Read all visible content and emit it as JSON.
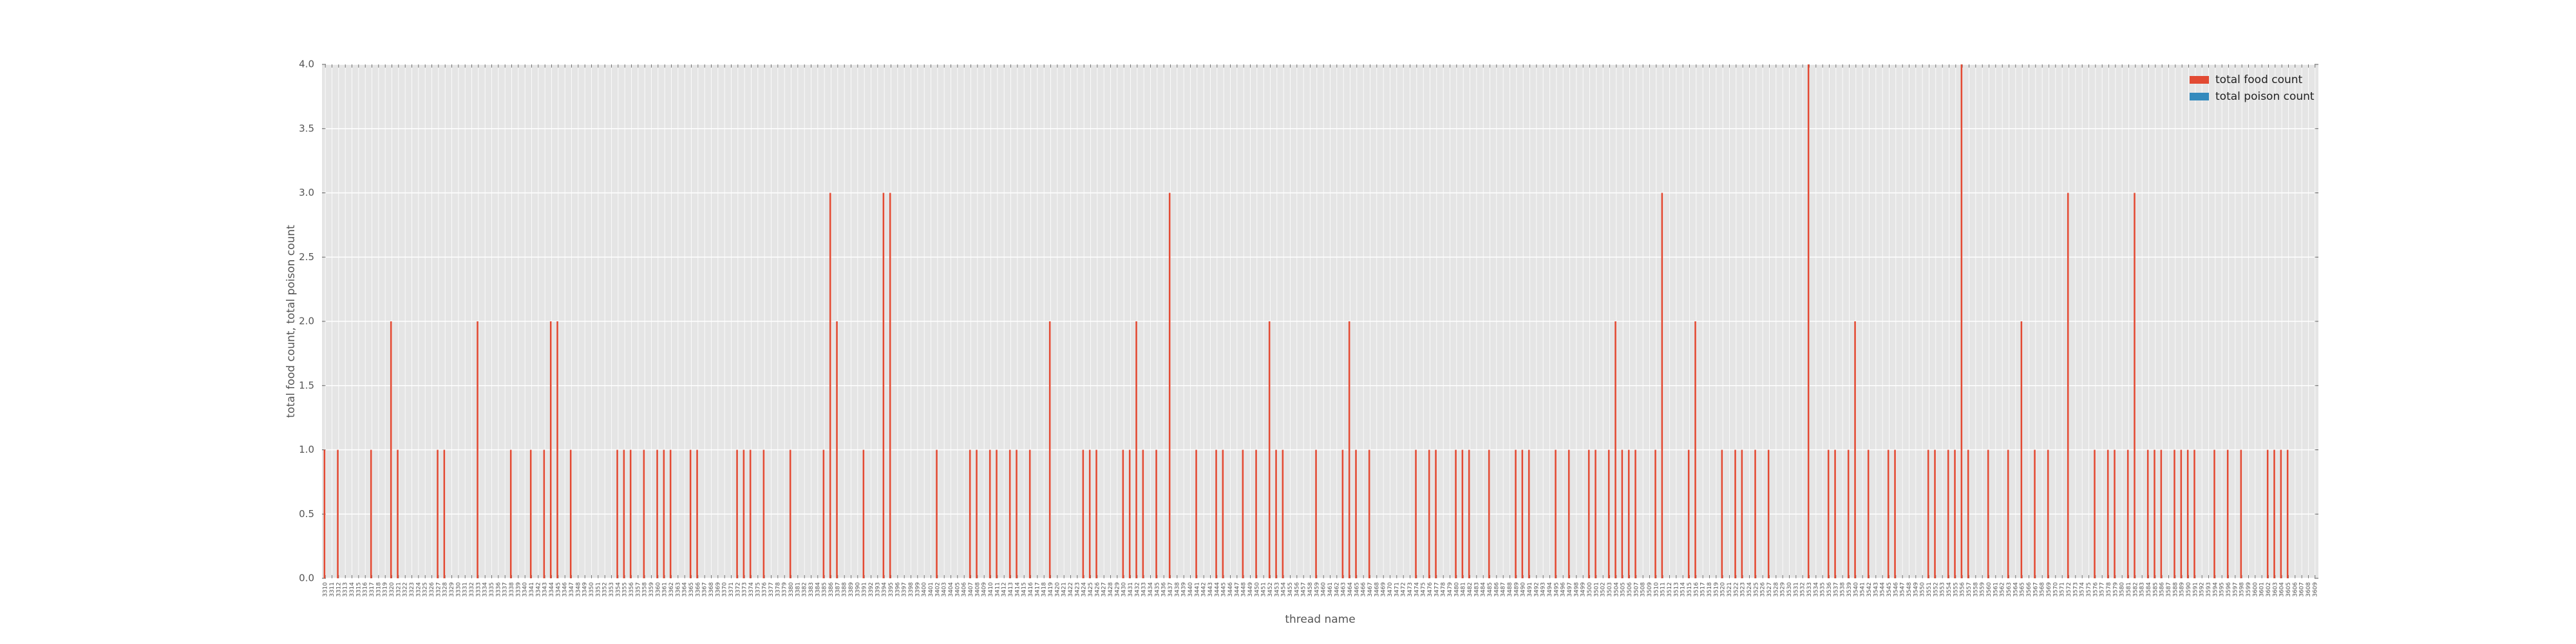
{
  "chart_data": {
    "type": "bar",
    "xlabel": "thread name",
    "ylabel": "total food count, total poison count",
    "categories": [
      "3310",
      "3311",
      "3312",
      "3313",
      "3314",
      "3315",
      "3316",
      "3317",
      "3318",
      "3319",
      "3320",
      "3321",
      "3322",
      "3323",
      "3324",
      "3325",
      "3326",
      "3327",
      "3328",
      "3329",
      "3330",
      "3331",
      "3332",
      "3333",
      "3334",
      "3335",
      "3336",
      "3337",
      "3338",
      "3339",
      "3340",
      "3341",
      "3342",
      "3343",
      "3344",
      "3345",
      "3346",
      "3347",
      "3348",
      "3349",
      "3350",
      "3351",
      "3352",
      "3353",
      "3354",
      "3355",
      "3356",
      "3357",
      "3358",
      "3359",
      "3360",
      "3361",
      "3362",
      "3363",
      "3364",
      "3365",
      "3366",
      "3367",
      "3368",
      "3369",
      "3370",
      "3371",
      "3372",
      "3373",
      "3374",
      "3375",
      "3376",
      "3377",
      "3378",
      "3379",
      "3380",
      "3381",
      "3382",
      "3383",
      "3384",
      "3385",
      "3386",
      "3387",
      "3388",
      "3389",
      "3390",
      "3391",
      "3392",
      "3393",
      "3394",
      "3395",
      "3396",
      "3397",
      "3398",
      "3399",
      "3400",
      "3401",
      "3402",
      "3403",
      "3404",
      "3405",
      "3406",
      "3407",
      "3408",
      "3409",
      "3410",
      "3411",
      "3412",
      "3413",
      "3414",
      "3415",
      "3416",
      "3417",
      "3418",
      "3419",
      "3420",
      "3421",
      "3422",
      "3423",
      "3424",
      "3425",
      "3426",
      "3427",
      "3428",
      "3429",
      "3430",
      "3431",
      "3432",
      "3433",
      "3434",
      "3435",
      "3436",
      "3437",
      "3438",
      "3439",
      "3440",
      "3441",
      "3442",
      "3443",
      "3444",
      "3445",
      "3446",
      "3447",
      "3448",
      "3449",
      "3450",
      "3451",
      "3452",
      "3453",
      "3454",
      "3455",
      "3456",
      "3457",
      "3458",
      "3459",
      "3460",
      "3461",
      "3462",
      "3463",
      "3464",
      "3465",
      "3466",
      "3467",
      "3468",
      "3469",
      "3470",
      "3471",
      "3472",
      "3473",
      "3474",
      "3475",
      "3476",
      "3477",
      "3478",
      "3479",
      "3480",
      "3481",
      "3482",
      "3483",
      "3484",
      "3485",
      "3486",
      "3487",
      "3488",
      "3489",
      "3490",
      "3491",
      "3492",
      "3493",
      "3494",
      "3495",
      "3496",
      "3497",
      "3498",
      "3499",
      "3500",
      "3501",
      "3502",
      "3503",
      "3504",
      "3505",
      "3506",
      "3507",
      "3508",
      "3509",
      "3510",
      "3511",
      "3512",
      "3513",
      "3514",
      "3515",
      "3516",
      "3517",
      "3518",
      "3519",
      "3520",
      "3521",
      "3522",
      "3523",
      "3524",
      "3525",
      "3526",
      "3527",
      "3528",
      "3529",
      "3530",
      "3531",
      "3532",
      "3533",
      "3534",
      "3535",
      "3536",
      "3537",
      "3538",
      "3539",
      "3540",
      "3541",
      "3542",
      "3543",
      "3544",
      "3545",
      "3546",
      "3547",
      "3548",
      "3549",
      "3550",
      "3551",
      "3552",
      "3553",
      "3554",
      "3555",
      "3556",
      "3557",
      "3558",
      "3559",
      "3560",
      "3561",
      "3562",
      "3563",
      "3564",
      "3565",
      "3566",
      "3567",
      "3568",
      "3569",
      "3570",
      "3571",
      "3572",
      "3573",
      "3574",
      "3575",
      "3576",
      "3577",
      "3578",
      "3579",
      "3580",
      "3581",
      "3582",
      "3583",
      "3584",
      "3585",
      "3586",
      "3587",
      "3588",
      "3589",
      "3590",
      "3591",
      "3592",
      "3593",
      "3594",
      "3595",
      "3596",
      "3597",
      "3598",
      "3599",
      "3600",
      "3601",
      "3602",
      "3603",
      "3604",
      "3605",
      "3606",
      "3607",
      "3608",
      "3609"
    ],
    "series": [
      {
        "name": "total food count",
        "color": "#E24A33",
        "values": [
          1,
          0,
          1,
          0,
          0,
          0,
          0,
          1,
          0,
          0,
          2,
          1,
          0,
          0,
          0,
          0,
          0,
          1,
          1,
          0,
          0,
          0,
          0,
          2,
          0,
          0,
          0,
          0,
          1,
          0,
          0,
          1,
          0,
          1,
          2,
          2,
          0,
          1,
          0,
          0,
          0,
          0,
          0,
          0,
          1,
          1,
          1,
          0,
          1,
          0,
          1,
          1,
          1,
          0,
          0,
          1,
          1,
          0,
          0,
          0,
          0,
          0,
          1,
          1,
          1,
          0,
          1,
          0,
          0,
          0,
          1,
          0,
          0,
          0,
          0,
          1,
          3,
          2,
          0,
          0,
          0,
          1,
          0,
          0,
          3,
          3,
          0,
          0,
          0,
          0,
          0,
          0,
          1,
          0,
          0,
          0,
          0,
          1,
          1,
          0,
          1,
          1,
          0,
          1,
          1,
          0,
          1,
          0,
          0,
          2,
          0,
          0,
          0,
          0,
          1,
          1,
          1,
          0,
          0,
          0,
          1,
          1,
          2,
          1,
          0,
          1,
          0,
          3,
          0,
          0,
          0,
          1,
          0,
          0,
          1,
          1,
          0,
          0,
          1,
          0,
          1,
          0,
          2,
          1,
          1,
          0,
          0,
          0,
          0,
          1,
          0,
          0,
          0,
          1,
          2,
          1,
          0,
          1,
          0,
          0,
          0,
          0,
          0,
          0,
          1,
          0,
          1,
          1,
          0,
          0,
          1,
          1,
          1,
          0,
          0,
          1,
          0,
          0,
          0,
          1,
          1,
          1,
          0,
          0,
          0,
          1,
          0,
          1,
          0,
          0,
          1,
          1,
          0,
          1,
          2,
          1,
          1,
          1,
          0,
          0,
          1,
          3,
          0,
          0,
          0,
          1,
          2,
          0,
          0,
          0,
          1,
          0,
          1,
          1,
          0,
          1,
          0,
          1,
          0,
          0,
          0,
          0,
          0,
          4,
          0,
          0,
          1,
          1,
          0,
          1,
          2,
          0,
          1,
          0,
          0,
          1,
          1,
          0,
          0,
          0,
          0,
          1,
          1,
          0,
          1,
          1,
          4,
          1,
          0,
          0,
          1,
          0,
          0,
          1,
          0,
          2,
          0,
          1,
          0,
          1,
          0,
          0,
          3,
          0,
          0,
          0,
          1,
          0,
          1,
          1,
          0,
          1,
          3,
          0,
          1,
          1,
          1,
          0,
          1,
          1,
          1,
          1,
          0,
          0,
          1,
          0,
          1,
          0,
          1,
          0,
          0,
          0,
          1,
          1,
          1,
          1,
          0,
          0,
          0,
          0
        ]
      },
      {
        "name": "total poison count",
        "color": "#348ABD",
        "values": [
          0,
          0,
          0,
          0,
          0,
          0,
          0,
          0,
          0,
          0,
          0,
          0,
          0,
          0,
          0,
          0,
          0,
          0,
          0,
          0,
          0,
          0,
          0,
          0,
          0,
          0,
          0,
          0,
          0,
          0,
          0,
          0,
          0,
          0,
          0,
          0,
          0,
          0,
          0,
          0,
          0,
          0,
          0,
          0,
          0,
          0,
          0,
          0,
          0,
          0,
          0,
          0,
          0,
          0,
          0,
          0,
          0,
          0,
          0,
          0,
          0,
          0,
          0,
          0,
          0,
          0,
          0,
          0,
          0,
          0,
          0,
          0,
          0,
          0,
          0,
          0,
          0,
          0,
          0,
          0,
          0,
          0,
          0,
          0,
          0,
          0,
          0,
          0,
          0,
          0,
          0,
          0,
          0,
          0,
          0,
          0,
          0,
          0,
          0,
          0,
          0,
          0,
          0,
          0,
          0,
          0,
          0,
          0,
          0,
          0,
          0,
          0,
          0,
          0,
          0,
          0,
          0,
          0,
          0,
          0,
          0,
          0,
          0,
          0,
          0,
          0,
          0,
          0,
          0,
          0,
          0,
          0,
          0,
          0,
          0,
          0,
          0,
          0,
          0,
          0,
          0,
          0,
          0,
          0,
          0,
          0,
          0,
          0,
          0,
          0,
          0,
          0,
          0,
          0,
          0,
          0,
          0,
          0,
          0,
          0,
          0,
          0,
          0,
          0,
          0,
          0,
          0,
          0,
          0,
          0,
          0,
          0,
          0,
          0,
          0,
          0,
          0,
          0,
          0,
          0,
          0,
          0,
          0,
          0,
          0,
          0,
          0,
          0,
          0,
          0,
          0,
          0,
          0,
          0,
          0,
          0,
          0,
          0,
          0,
          0,
          0,
          0,
          0,
          0,
          0,
          0,
          0,
          0,
          0,
          0,
          0,
          0,
          0,
          0,
          0,
          0,
          0,
          0,
          0,
          0,
          0,
          0,
          0,
          0,
          0,
          0,
          0,
          0,
          0,
          0,
          0,
          0,
          0,
          0,
          0,
          0,
          0,
          0,
          0,
          0,
          0,
          0,
          0,
          0,
          0,
          0,
          0,
          0,
          0,
          0,
          0,
          0,
          0,
          0,
          0,
          0,
          0,
          0,
          0,
          0,
          0,
          0,
          0,
          0,
          0,
          0,
          0,
          0,
          0,
          0,
          0,
          0,
          0,
          0,
          0,
          0,
          0,
          0,
          0,
          0,
          0,
          0,
          0,
          0,
          0,
          0,
          0,
          0,
          0,
          0,
          0,
          0,
          0,
          0,
          0,
          0,
          0,
          0,
          0,
          0
        ]
      }
    ],
    "ylim": [
      0,
      4
    ],
    "yticks": [
      {
        "value": 0,
        "label": "0.0"
      },
      {
        "value": 0.5,
        "label": "0.5"
      },
      {
        "value": 1,
        "label": "1.0"
      },
      {
        "value": 1.5,
        "label": "1.5"
      },
      {
        "value": 2,
        "label": "2.0"
      },
      {
        "value": 2.5,
        "label": "2.5"
      },
      {
        "value": 3,
        "label": "3.0"
      },
      {
        "value": 3.5,
        "label": "3.5"
      },
      {
        "value": 4,
        "label": "4.0"
      }
    ],
    "grid": true,
    "legend": "upper right"
  }
}
